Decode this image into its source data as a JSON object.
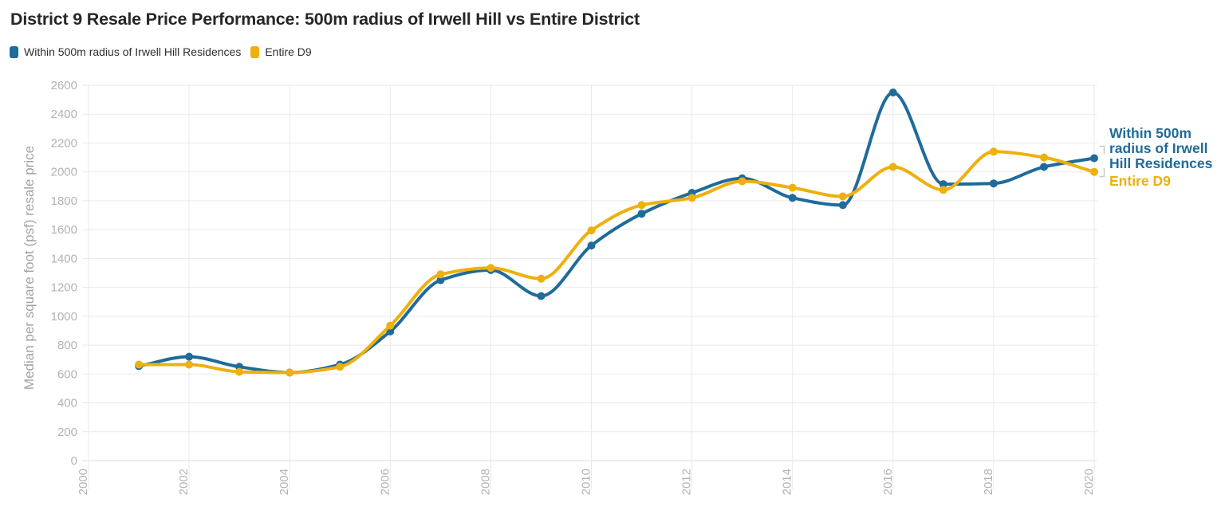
{
  "chart_data": {
    "type": "line",
    "title": "District 9 Resale Price Performance: 500m radius of Irwell Hill vs Entire District",
    "xlabel": "",
    "ylabel": "Median per square foot (psf) resale price",
    "x": [
      2001,
      2002,
      2003,
      2004,
      2005,
      2006,
      2007,
      2008,
      2009,
      2010,
      2011,
      2012,
      2013,
      2014,
      2015,
      2016,
      2017,
      2018,
      2019,
      2020
    ],
    "series": [
      {
        "name": "Within 500m radius of Irwell Hill Residences",
        "color": "#1f6b99",
        "values": [
          655,
          720,
          650,
          610,
          665,
          895,
          1250,
          1320,
          1140,
          1490,
          1710,
          1855,
          1955,
          1820,
          1770,
          2550,
          1915,
          1920,
          2035,
          2095
        ]
      },
      {
        "name": "Entire D9",
        "color": "#edb00e",
        "values": [
          665,
          665,
          615,
          610,
          650,
          935,
          1290,
          1335,
          1260,
          1595,
          1770,
          1820,
          1935,
          1890,
          1830,
          2035,
          1875,
          2140,
          2100,
          2000
        ]
      }
    ],
    "xlim": [
      2000,
      2020
    ],
    "ylim": [
      0,
      2600
    ],
    "xticks": [
      2000,
      2002,
      2004,
      2006,
      2008,
      2010,
      2012,
      2014,
      2016,
      2018,
      2020
    ],
    "ytick_step": 200,
    "grid": true,
    "legend_position": "top-left"
  },
  "end_labels": {
    "irwell": "Within 500m\nradius of Irwell\nHill Residences",
    "d9": "Entire D9"
  }
}
